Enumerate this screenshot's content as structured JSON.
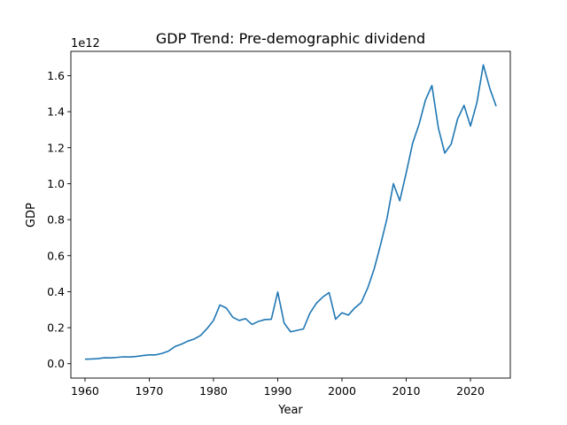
{
  "chart_data": {
    "type": "line",
    "title": "GDP Trend: Pre-demographic dividend",
    "xlabel": "Year",
    "ylabel": "GDP",
    "offset_label": "1e12",
    "xlim": [
      1957.8,
      2026.2
    ],
    "ylim": [
      -0.08,
      1.735
    ],
    "x_ticks": [
      1960,
      1970,
      1980,
      1990,
      2000,
      2010,
      2020
    ],
    "y_ticks": [
      0.0,
      0.2,
      0.4,
      0.6,
      0.8,
      1.0,
      1.2,
      1.4,
      1.6
    ],
    "y_tick_labels": [
      "0.0",
      "0.2",
      "0.4",
      "0.6",
      "0.8",
      "1.0",
      "1.2",
      "1.4",
      "1.6"
    ],
    "grid": false,
    "line_color": "#1f77b4",
    "series": [
      {
        "x": [
          1960,
          1961,
          1962,
          1963,
          1964,
          1965,
          1966,
          1967,
          1968,
          1969,
          1970,
          1971,
          1972,
          1973,
          1974,
          1975,
          1976,
          1977,
          1978,
          1979,
          1980,
          1981,
          1982,
          1983,
          1984,
          1985,
          1986,
          1987,
          1988,
          1989,
          1990,
          1991,
          1992,
          1993,
          1994,
          1995,
          1996,
          1997,
          1998,
          1999,
          2000,
          2001,
          2002,
          2003,
          2004,
          2005,
          2006,
          2007,
          2008,
          2009,
          2010,
          2011,
          2012,
          2013,
          2014,
          2015,
          2016,
          2017,
          2018,
          2019,
          2020,
          2021,
          2022,
          2023,
          2024
        ],
        "values": [
          0.025,
          0.026,
          0.028,
          0.033,
          0.032,
          0.035,
          0.038,
          0.037,
          0.04,
          0.045,
          0.049,
          0.049,
          0.057,
          0.07,
          0.095,
          0.108,
          0.125,
          0.137,
          0.157,
          0.195,
          0.24,
          0.326,
          0.309,
          0.258,
          0.24,
          0.25,
          0.218,
          0.235,
          0.245,
          0.247,
          0.398,
          0.225,
          0.177,
          0.185,
          0.193,
          0.28,
          0.335,
          0.37,
          0.395,
          0.247,
          0.283,
          0.27,
          0.31,
          0.34,
          0.42,
          0.525,
          0.66,
          0.805,
          1.0,
          0.905,
          1.06,
          1.225,
          1.33,
          1.465,
          1.545,
          1.31,
          1.17,
          1.22,
          1.36,
          1.435,
          1.32,
          1.45,
          1.66,
          1.53,
          1.43
        ]
      }
    ]
  }
}
